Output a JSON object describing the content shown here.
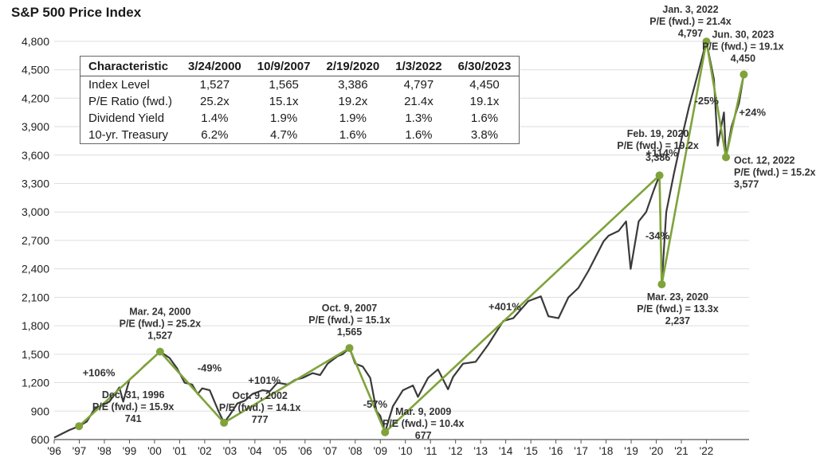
{
  "page": {
    "title": "S&P 500 Price Index"
  },
  "chart_data": {
    "type": "line",
    "title": "S&P 500 Price Index",
    "xlabel": "",
    "ylabel": "",
    "xlim": [
      1996.0,
      2023.7
    ],
    "ylim": [
      600,
      4950
    ],
    "yticks": [
      600,
      900,
      1200,
      1500,
      1800,
      2100,
      2400,
      2700,
      3000,
      3300,
      3600,
      3900,
      4200,
      4500,
      4800
    ],
    "ytick_labels": [
      "600",
      "900",
      "1,200",
      "1,500",
      "1,800",
      "2,100",
      "2,400",
      "2,700",
      "3,000",
      "3,300",
      "3,600",
      "3,900",
      "4,200",
      "4,500",
      "4,800"
    ],
    "xticks": [
      1996,
      1997,
      1998,
      1999,
      2000,
      2001,
      2002,
      2003,
      2004,
      2005,
      2006,
      2007,
      2008,
      2009,
      2010,
      2011,
      2012,
      2013,
      2014,
      2015,
      2016,
      2017,
      2018,
      2019,
      2020,
      2021,
      2022
    ],
    "xtick_labels": [
      "'96",
      "'97",
      "'98",
      "'99",
      "'00",
      "'01",
      "'02",
      "'03",
      "'04",
      "'05",
      "'06",
      "'07",
      "'08",
      "'09",
      "'10",
      "'11",
      "'12",
      "'13",
      "'14",
      "'15",
      "'16",
      "'17",
      "'18",
      "'19",
      "'20",
      "'21",
      "'22"
    ],
    "grid": true,
    "price_series": {
      "x": [
        1996.0,
        1996.3,
        1996.6,
        1996.99,
        1997.3,
        1997.6,
        1997.9,
        1998.2,
        1998.6,
        1998.75,
        1999.0,
        1999.3,
        1999.6,
        1999.9,
        2000.22,
        2000.6,
        2000.9,
        2001.2,
        2001.5,
        2001.72,
        2001.9,
        2002.2,
        2002.55,
        2002.77,
        2003.0,
        2003.3,
        2003.6,
        2003.9,
        2004.3,
        2004.6,
        2004.9,
        2005.3,
        2005.6,
        2005.9,
        2006.3,
        2006.6,
        2006.9,
        2007.3,
        2007.5,
        2007.77,
        2008.0,
        2008.3,
        2008.6,
        2008.85,
        2009.0,
        2009.19,
        2009.5,
        2009.9,
        2010.3,
        2010.5,
        2010.9,
        2011.3,
        2011.7,
        2011.9,
        2012.3,
        2012.8,
        2013.3,
        2013.9,
        2014.3,
        2014.9,
        2015.4,
        2015.7,
        2016.1,
        2016.5,
        2016.9,
        2017.3,
        2017.9,
        2018.1,
        2018.5,
        2018.8,
        2018.98,
        2019.3,
        2019.6,
        2019.9,
        2020.13,
        2020.22,
        2020.4,
        2020.7,
        2020.99,
        2021.3,
        2021.6,
        2021.9,
        2022.0,
        2022.3,
        2022.45,
        2022.7,
        2022.78,
        2023.0,
        2023.3,
        2023.49
      ],
      "y": [
        620,
        660,
        700,
        741,
        790,
        920,
        960,
        1000,
        1150,
        1000,
        1230,
        1300,
        1380,
        1450,
        1527,
        1460,
        1350,
        1200,
        1180,
        1080,
        1140,
        1120,
        900,
        777,
        860,
        980,
        1010,
        1080,
        1120,
        1110,
        1200,
        1180,
        1230,
        1250,
        1300,
        1280,
        1400,
        1480,
        1500,
        1565,
        1400,
        1370,
        1250,
        900,
        850,
        677,
        950,
        1120,
        1170,
        1050,
        1250,
        1340,
        1130,
        1260,
        1400,
        1420,
        1600,
        1850,
        1880,
        2060,
        2110,
        1900,
        1880,
        2100,
        2200,
        2380,
        2690,
        2750,
        2800,
        2900,
        2400,
        2900,
        3000,
        3230,
        3386,
        2237,
        3000,
        3400,
        3750,
        4100,
        4400,
        4700,
        4797,
        4400,
        3700,
        4050,
        3577,
        3900,
        4150,
        4450
      ]
    },
    "turning_points": [
      {
        "date": "Dec. 31, 1996",
        "x": 1996.99,
        "value": 741,
        "value_label": "741",
        "pe": "P/E (fwd.) = 15.9x"
      },
      {
        "date": "Mar. 24, 2000",
        "x": 2000.22,
        "value": 1527,
        "value_label": "1,527",
        "pe": "P/E (fwd.) = 25.2x"
      },
      {
        "date": "Oct. 9, 2002",
        "x": 2002.77,
        "value": 777,
        "value_label": "777",
        "pe": "P/E (fwd.) = 14.1x"
      },
      {
        "date": "Oct. 9, 2007",
        "x": 2007.77,
        "value": 1565,
        "value_label": "1,565",
        "pe": "P/E (fwd.) = 15.1x"
      },
      {
        "date": "Mar. 9, 2009",
        "x": 2009.19,
        "value": 677,
        "value_label": "677",
        "pe": "P/E (fwd.) = 10.4x"
      },
      {
        "date": "Feb. 19, 2020",
        "x": 2020.13,
        "value": 3386,
        "value_label": "3,386",
        "pe": "P/E (fwd.) = 19.2x"
      },
      {
        "date": "Mar. 23, 2020",
        "x": 2020.22,
        "value": 2237,
        "value_label": "2,237",
        "pe": "P/E (fwd.) = 13.3x"
      },
      {
        "date": "Jan. 3, 2022",
        "x": 2022.0,
        "value": 4797,
        "value_label": "4,797",
        "pe": "P/E (fwd.) = 21.4x"
      },
      {
        "date": "Oct. 12, 2022",
        "x": 2022.78,
        "value": 3577,
        "value_label": "3,577",
        "pe": "P/E (fwd.) = 15.2x"
      },
      {
        "date": "Jun. 30, 2023",
        "x": 2023.49,
        "value": 4450,
        "value_label": "4,450",
        "pe": "P/E (fwd.) = 19.1x"
      }
    ],
    "moves": [
      {
        "label": "+106%"
      },
      {
        "label": "-49%"
      },
      {
        "label": "+101%"
      },
      {
        "label": "-57%"
      },
      {
        "label": "+401%"
      },
      {
        "label": "-34%"
      },
      {
        "label": "+114%"
      },
      {
        "label": "-25%"
      },
      {
        "label": "+24%"
      }
    ],
    "table": {
      "columns": [
        "Characteristic",
        "3/24/2000",
        "10/9/2007",
        "2/19/2020",
        "1/3/2022",
        "6/30/2023"
      ],
      "rows": [
        [
          "Index Level",
          "1,527",
          "1,565",
          "3,386",
          "4,797",
          "4,450"
        ],
        [
          "P/E Ratio (fwd.)",
          "25.2x",
          "15.1x",
          "19.2x",
          "21.4x",
          "19.1x"
        ],
        [
          "Dividend Yield",
          "1.4%",
          "1.9%",
          "1.9%",
          "1.3%",
          "1.6%"
        ],
        [
          "10-yr. Treasury",
          "6.2%",
          "4.7%",
          "1.6%",
          "1.6%",
          "3.8%"
        ]
      ]
    },
    "colors": {
      "price_line": "#3a3a3a",
      "trend_line": "#7fa33a",
      "markers": "#7fa33a",
      "grid": "#dddddd"
    }
  }
}
